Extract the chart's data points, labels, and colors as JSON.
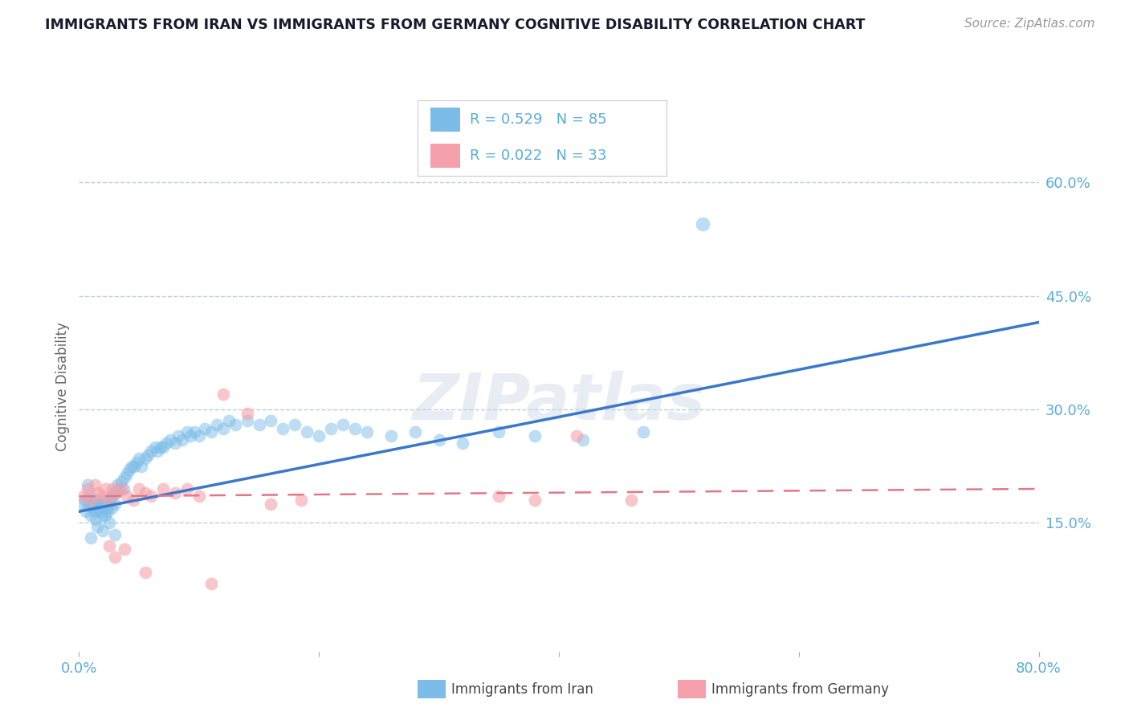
{
  "title": "IMMIGRANTS FROM IRAN VS IMMIGRANTS FROM GERMANY COGNITIVE DISABILITY CORRELATION CHART",
  "source": "Source: ZipAtlas.com",
  "ylabel_label": "Cognitive Disability",
  "xlim": [
    0.0,
    0.8
  ],
  "ylim": [
    -0.02,
    0.68
  ],
  "x_ticks": [
    0.0,
    0.2,
    0.4,
    0.6,
    0.8
  ],
  "x_tick_labels": [
    "0.0%",
    "",
    "",
    "",
    "80.0%"
  ],
  "y_ticks": [
    0.15,
    0.3,
    0.45,
    0.6
  ],
  "y_tick_labels": [
    "15.0%",
    "30.0%",
    "45.0%",
    "60.0%"
  ],
  "iran_color": "#7bbde8",
  "germany_color": "#f5a0aa",
  "iran_line_color": "#3a78c9",
  "germany_line_color": "#e07888",
  "iran_R": 0.529,
  "iran_N": 85,
  "germany_R": 0.022,
  "germany_N": 33,
  "watermark": "ZIPatlas",
  "legend_iran_label": "Immigrants from Iran",
  "legend_germany_label": "Immigrants from Germany",
  "background_color": "#ffffff",
  "grid_color": "#b8cfe0",
  "iran_line_x0": 0.0,
  "iran_line_y0": 0.165,
  "iran_line_x1": 0.8,
  "iran_line_y1": 0.415,
  "germany_line_x0": 0.0,
  "germany_line_y0": 0.185,
  "germany_line_x1": 0.8,
  "germany_line_y1": 0.195,
  "iran_scatter_x": [
    0.003,
    0.005,
    0.006,
    0.007,
    0.008,
    0.009,
    0.01,
    0.011,
    0.012,
    0.013,
    0.014,
    0.015,
    0.016,
    0.017,
    0.018,
    0.019,
    0.02,
    0.021,
    0.022,
    0.023,
    0.024,
    0.025,
    0.026,
    0.027,
    0.028,
    0.029,
    0.03,
    0.032,
    0.033,
    0.035,
    0.037,
    0.038,
    0.04,
    0.042,
    0.044,
    0.046,
    0.048,
    0.05,
    0.052,
    0.055,
    0.057,
    0.06,
    0.063,
    0.065,
    0.068,
    0.07,
    0.073,
    0.076,
    0.08,
    0.083,
    0.086,
    0.09,
    0.093,
    0.096,
    0.1,
    0.105,
    0.11,
    0.115,
    0.12,
    0.125,
    0.13,
    0.14,
    0.15,
    0.16,
    0.17,
    0.18,
    0.19,
    0.2,
    0.21,
    0.22,
    0.23,
    0.24,
    0.26,
    0.28,
    0.3,
    0.32,
    0.35,
    0.38,
    0.42,
    0.47,
    0.01,
    0.015,
    0.02,
    0.025,
    0.03
  ],
  "iran_scatter_y": [
    0.175,
    0.18,
    0.165,
    0.2,
    0.175,
    0.185,
    0.16,
    0.17,
    0.175,
    0.165,
    0.155,
    0.18,
    0.17,
    0.175,
    0.165,
    0.16,
    0.175,
    0.18,
    0.16,
    0.17,
    0.165,
    0.175,
    0.18,
    0.17,
    0.185,
    0.19,
    0.175,
    0.2,
    0.195,
    0.205,
    0.195,
    0.21,
    0.215,
    0.22,
    0.225,
    0.225,
    0.23,
    0.235,
    0.225,
    0.235,
    0.24,
    0.245,
    0.25,
    0.245,
    0.25,
    0.25,
    0.255,
    0.26,
    0.255,
    0.265,
    0.26,
    0.27,
    0.265,
    0.27,
    0.265,
    0.275,
    0.27,
    0.28,
    0.275,
    0.285,
    0.28,
    0.285,
    0.28,
    0.285,
    0.275,
    0.28,
    0.27,
    0.265,
    0.275,
    0.28,
    0.275,
    0.27,
    0.265,
    0.27,
    0.26,
    0.255,
    0.27,
    0.265,
    0.26,
    0.27,
    0.13,
    0.145,
    0.14,
    0.15,
    0.135
  ],
  "iran_outlier_x": [
    0.52
  ],
  "iran_outlier_y": [
    0.545
  ],
  "germany_scatter_x": [
    0.004,
    0.007,
    0.01,
    0.013,
    0.016,
    0.019,
    0.022,
    0.025,
    0.028,
    0.031,
    0.035,
    0.04,
    0.045,
    0.05,
    0.055,
    0.06,
    0.07,
    0.08,
    0.09,
    0.1,
    0.12,
    0.14,
    0.16,
    0.185,
    0.35,
    0.38,
    0.415,
    0.46,
    0.025,
    0.03,
    0.038,
    0.055,
    0.11
  ],
  "germany_scatter_y": [
    0.185,
    0.195,
    0.18,
    0.2,
    0.19,
    0.185,
    0.195,
    0.18,
    0.195,
    0.19,
    0.195,
    0.185,
    0.18,
    0.195,
    0.19,
    0.185,
    0.195,
    0.19,
    0.195,
    0.185,
    0.32,
    0.295,
    0.175,
    0.18,
    0.185,
    0.18,
    0.265,
    0.18,
    0.12,
    0.105,
    0.115,
    0.085,
    0.07
  ]
}
